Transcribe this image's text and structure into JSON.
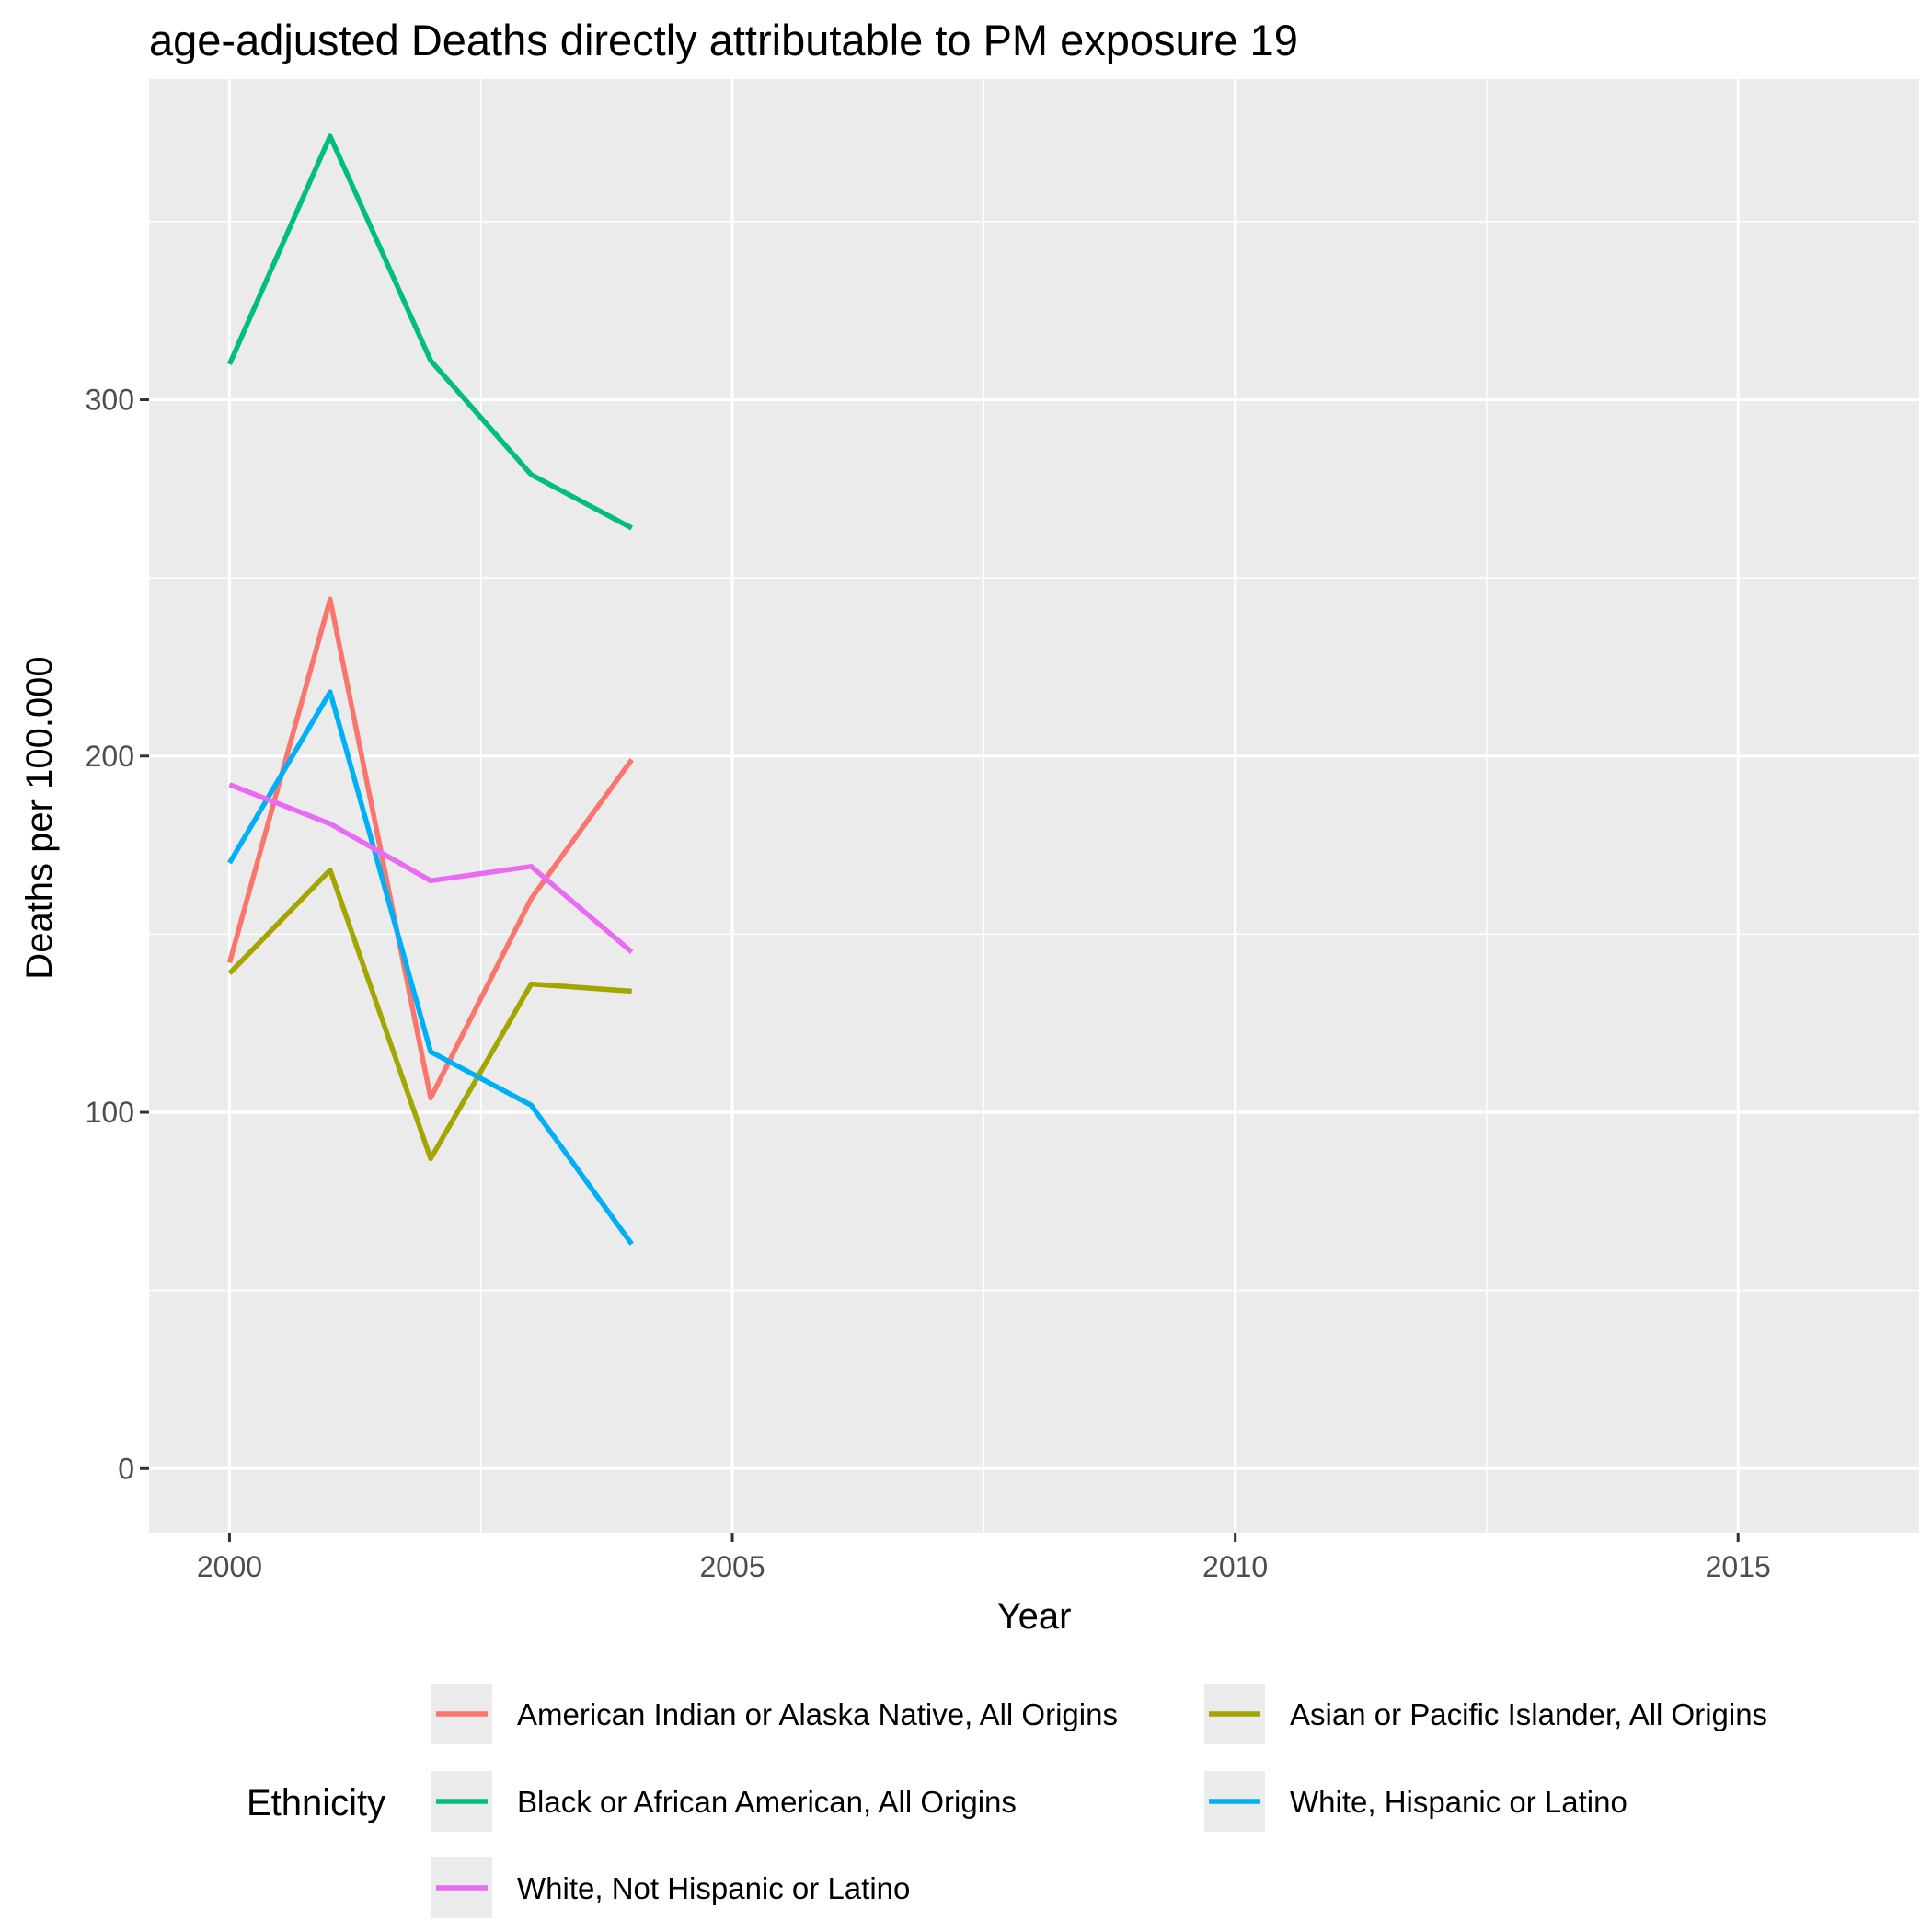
{
  "chart_data": {
    "type": "line",
    "title": "age-adjusted Deaths directly attributable to PM exposure 19",
    "xlabel": "Year",
    "ylabel": "Deaths per 100.000",
    "xlim": [
      1999.2,
      2016.8
    ],
    "ylim": [
      -18,
      390
    ],
    "x_ticks": [
      2000,
      2005,
      2010,
      2015
    ],
    "x_minor_ticks": [
      2002.5,
      2007.5,
      2012.5
    ],
    "y_ticks": [
      0,
      100,
      200,
      300
    ],
    "y_minor_ticks": [
      50,
      150,
      250,
      350
    ],
    "grid": true,
    "legend": {
      "title": "Ethnicity",
      "position": "bottom"
    },
    "x": [
      2000,
      2001,
      2002,
      2003,
      2004
    ],
    "series": [
      {
        "name": "American Indian or Alaska Native, All Origins",
        "color": "#F8766D",
        "values": [
          142,
          244,
          104,
          160,
          199
        ]
      },
      {
        "name": "Asian or Pacific Islander, All Origins",
        "color": "#A3A500",
        "values": [
          139,
          168,
          87,
          136,
          134
        ]
      },
      {
        "name": "Black or African American, All Origins",
        "color": "#00BF7D",
        "values": [
          310,
          374,
          311,
          279,
          264
        ]
      },
      {
        "name": "White, Hispanic or Latino",
        "color": "#00B0F6",
        "values": [
          170,
          218,
          117,
          102,
          63
        ]
      },
      {
        "name": "White, Not Hispanic or Latino",
        "color": "#E76BF3",
        "values": [
          192,
          181,
          165,
          169,
          145
        ]
      }
    ]
  }
}
